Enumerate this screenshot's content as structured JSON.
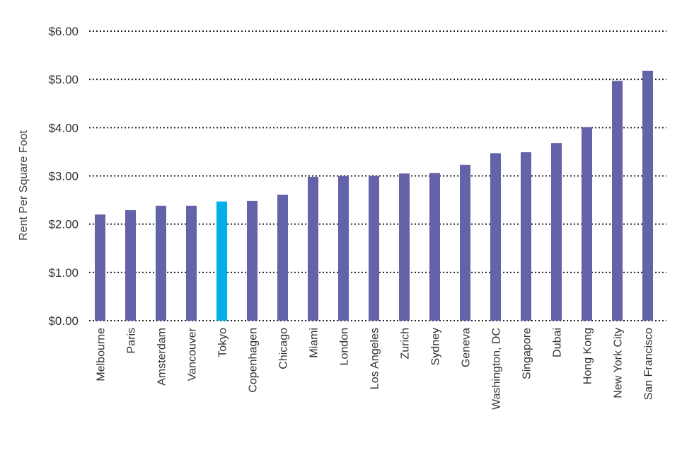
{
  "chart_data": {
    "type": "bar",
    "title": "",
    "xlabel": "",
    "ylabel": "Rent Per Square Foot",
    "ylim": [
      0,
      6
    ],
    "yticks": [
      "$0.00",
      "$1.00",
      "$2.00",
      "$3.00",
      "$4.00",
      "$5.00",
      "$6.00"
    ],
    "grid": true,
    "legend": "none",
    "categories": [
      "Melbourne",
      "Paris",
      "Amsterdam",
      "Vancouver",
      "Tokyo",
      "Copenhagen",
      "Chicago",
      "Miami",
      "London",
      "Los Angeles",
      "Zurich",
      "Sydney",
      "Geneva",
      "Washington, DC",
      "Singapore",
      "Dubai",
      "Hong Kong",
      "New York City",
      "San Francisco"
    ],
    "values": [
      2.2,
      2.29,
      2.38,
      2.38,
      2.47,
      2.48,
      2.61,
      2.98,
      3.0,
      3.0,
      3.05,
      3.06,
      3.23,
      3.47,
      3.49,
      3.68,
      4.01,
      4.97,
      5.18
    ],
    "highlight": "Tokyo",
    "colors": {
      "bar": "#6462a9",
      "highlight": "#00aee8",
      "grid": "#222222"
    }
  }
}
